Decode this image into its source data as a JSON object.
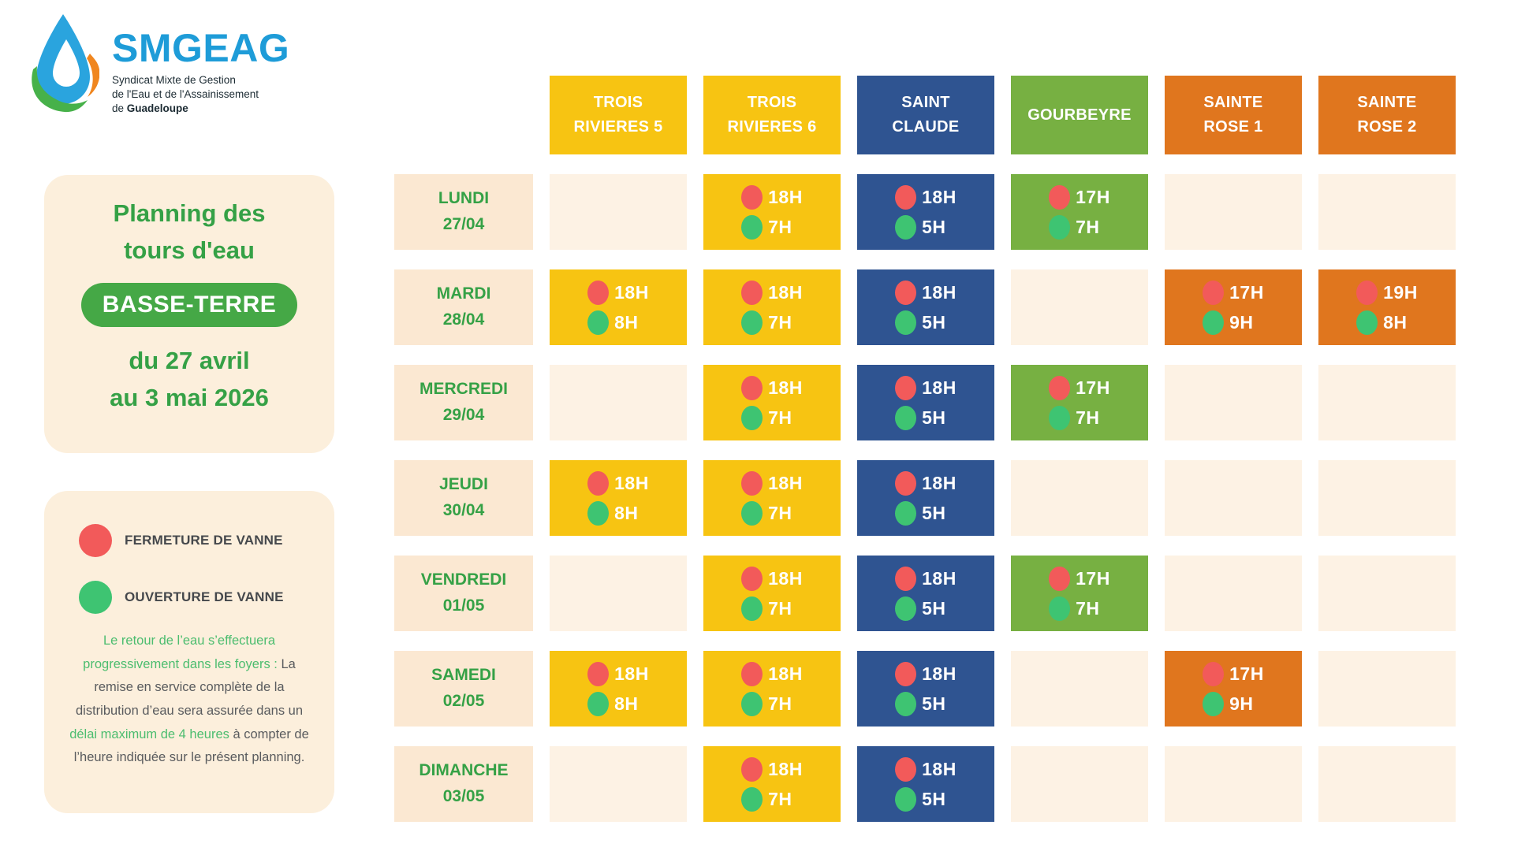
{
  "logo": {
    "brand": "SMGEAG",
    "subtitle_line1": "Syndicat Mixte de Gestion",
    "subtitle_line2": "de l'Eau et de l'Assainissement",
    "subtitle_line3_normal": "de ",
    "subtitle_line3_bold": "Guadeloupe"
  },
  "info_panel": {
    "title_line1": "Planning des",
    "title_line2": "tours d'eau",
    "badge": "BASSE-TERRE",
    "period_line1": "du 27 avril",
    "period_line2": "au 3 mai 2026"
  },
  "legend": {
    "close_label": "FERMETURE DE VANNE",
    "open_label": "OUVERTURE DE VANNE",
    "note_segments": [
      {
        "text": "Le retour de l’eau s’effectuera progressivement dans les foyers :",
        "style": "green"
      },
      {
        "text": " La remise en service complète de la distribution d’eau sera assurée dans un ",
        "style": "gray"
      },
      {
        "text": "délai maximum de 4 heures",
        "style": "green"
      },
      {
        "text": " à compter de l’heure indiquée sur le présent planning.",
        "style": "gray"
      }
    ]
  },
  "schedule": {
    "columns": [
      {
        "id": "trois-rivieres-5",
        "lines": [
          "TROIS",
          "RIVIERES 5"
        ],
        "color": "#F7C412"
      },
      {
        "id": "trois-rivieres-6",
        "lines": [
          "TROIS",
          "RIVIERES 6"
        ],
        "color": "#F7C412"
      },
      {
        "id": "saint-claude",
        "lines": [
          "SAINT",
          "CLAUDE"
        ],
        "color": "#2F5491"
      },
      {
        "id": "gourbeyre",
        "lines": [
          "GOURBEYRE"
        ],
        "color": "#77B042"
      },
      {
        "id": "sainte-rose-1",
        "lines": [
          "SAINTE",
          "ROSE 1"
        ],
        "color": "#E0761E"
      },
      {
        "id": "sainte-rose-2",
        "lines": [
          "SAINTE",
          "ROSE 2"
        ],
        "color": "#E0761E"
      }
    ],
    "rows": [
      {
        "id": "lundi",
        "day": "LUNDI",
        "date": "27/04",
        "cells": [
          null,
          {
            "close": "18H",
            "open": "7H"
          },
          {
            "close": "18H",
            "open": "5H"
          },
          {
            "close": "17H",
            "open": "7H"
          },
          null,
          null
        ]
      },
      {
        "id": "mardi",
        "day": "MARDI",
        "date": "28/04",
        "cells": [
          {
            "close": "18H",
            "open": "8H"
          },
          {
            "close": "18H",
            "open": "7H"
          },
          {
            "close": "18H",
            "open": "5H"
          },
          null,
          {
            "close": "17H",
            "open": "9H"
          },
          {
            "close": "19H",
            "open": "8H"
          }
        ]
      },
      {
        "id": "mercredi",
        "day": "MERCREDI",
        "date": "29/04",
        "cells": [
          null,
          {
            "close": "18H",
            "open": "7H"
          },
          {
            "close": "18H",
            "open": "5H"
          },
          {
            "close": "17H",
            "open": "7H"
          },
          null,
          null
        ]
      },
      {
        "id": "jeudi",
        "day": "JEUDI",
        "date": "30/04",
        "cells": [
          {
            "close": "18H",
            "open": "8H"
          },
          {
            "close": "18H",
            "open": "7H"
          },
          {
            "close": "18H",
            "open": "5H"
          },
          null,
          null,
          null
        ]
      },
      {
        "id": "vendredi",
        "day": "VENDREDI",
        "date": "01/05",
        "cells": [
          null,
          {
            "close": "18H",
            "open": "7H"
          },
          {
            "close": "18H",
            "open": "5H"
          },
          {
            "close": "17H",
            "open": "7H"
          },
          null,
          null
        ]
      },
      {
        "id": "samedi",
        "day": "SAMEDI",
        "date": "02/05",
        "cells": [
          {
            "close": "18H",
            "open": "8H"
          },
          {
            "close": "18H",
            "open": "7H"
          },
          {
            "close": "18H",
            "open": "5H"
          },
          null,
          {
            "close": "17H",
            "open": "9H"
          },
          null
        ]
      },
      {
        "id": "dimanche",
        "day": "DIMANCHE",
        "date": "03/05",
        "cells": [
          null,
          {
            "close": "18H",
            "open": "7H"
          },
          {
            "close": "18H",
            "open": "5H"
          },
          null,
          null,
          null
        ]
      }
    ]
  },
  "palette": {
    "brand_blue": "#1E9CD8",
    "panel_cream": "#FCEFDC",
    "label_cream": "#FBE8D2",
    "empty_cell_cream": "#FDF2E4",
    "green_text": "#35A146",
    "badge_green": "#45A846",
    "valve_close_red": "#F25A5A",
    "valve_open_green": "#3EC472",
    "legend_text": "#45484C",
    "note_gray": "#595B5E",
    "note_green": "#4CBD6F"
  }
}
